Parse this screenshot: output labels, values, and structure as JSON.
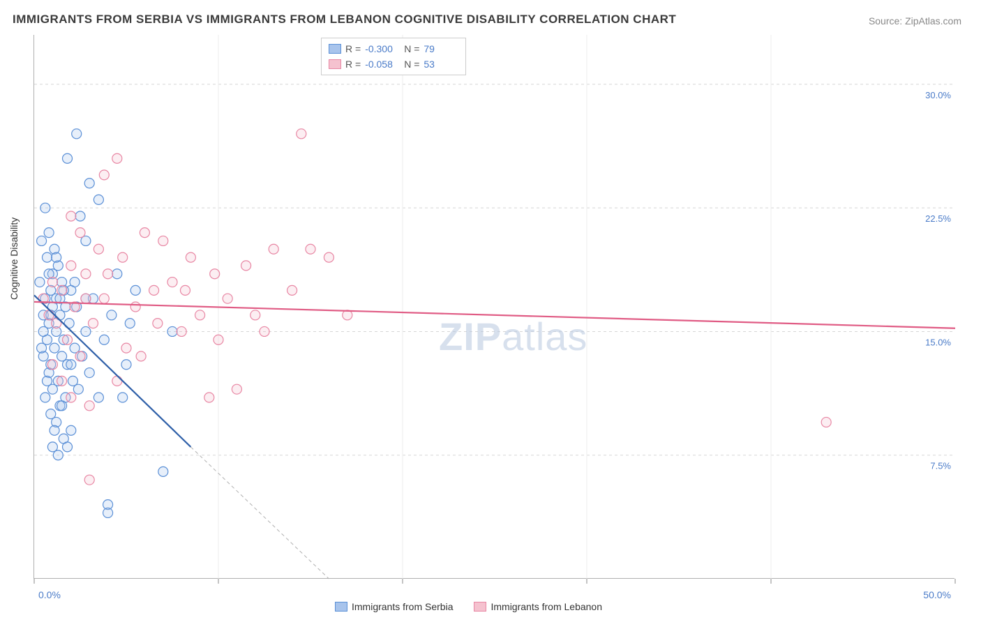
{
  "title": "IMMIGRANTS FROM SERBIA VS IMMIGRANTS FROM LEBANON COGNITIVE DISABILITY CORRELATION CHART",
  "source": "Source: ZipAtlas.com",
  "watermark_bold": "ZIP",
  "watermark_rest": "atlas",
  "y_axis_title": "Cognitive Disability",
  "chart": {
    "type": "scatter",
    "background_color": "#ffffff",
    "grid_color": "#d5d5d5",
    "axis_color": "#b0b0b0",
    "xlim": [
      0,
      50
    ],
    "ylim": [
      0,
      33
    ],
    "x_ticks": [
      0,
      10,
      20,
      30,
      40,
      50
    ],
    "x_tick_labels": [
      "0.0%",
      "",
      "",
      "",
      "",
      "50.0%"
    ],
    "y_ticks": [
      7.5,
      15.0,
      22.5,
      30.0
    ],
    "y_tick_labels": [
      "7.5%",
      "15.0%",
      "22.5%",
      "30.0%"
    ],
    "label_color": "#4a7bc8",
    "label_fontsize": 13,
    "marker_radius": 7,
    "marker_stroke_width": 1.2,
    "marker_fill_opacity": 0.28
  },
  "series": [
    {
      "name": "Immigrants from Serbia",
      "color_fill": "#a8c4ec",
      "color_stroke": "#5a8fd6",
      "R": "-0.300",
      "N": "79",
      "trend": {
        "x1": 0,
        "y1": 17.2,
        "x2": 8.5,
        "y2": 8.0,
        "color": "#2e5fa8",
        "width": 2.2
      },
      "trend_ext": {
        "x1": 8.5,
        "y1": 8.0,
        "x2": 16.0,
        "y2": 0.0,
        "color": "#b0b0b0",
        "dash": "5,4",
        "width": 1
      },
      "points": [
        [
          0.3,
          18.0
        ],
        [
          0.4,
          20.5
        ],
        [
          0.5,
          16.0
        ],
        [
          0.6,
          17.0
        ],
        [
          0.6,
          22.5
        ],
        [
          0.7,
          14.5
        ],
        [
          0.7,
          19.5
        ],
        [
          0.8,
          12.5
        ],
        [
          0.8,
          15.5
        ],
        [
          0.8,
          21.0
        ],
        [
          0.9,
          13.0
        ],
        [
          0.9,
          17.5
        ],
        [
          1.0,
          11.5
        ],
        [
          1.0,
          16.5
        ],
        [
          1.0,
          18.5
        ],
        [
          1.1,
          14.0
        ],
        [
          1.1,
          20.0
        ],
        [
          1.2,
          9.5
        ],
        [
          1.2,
          15.0
        ],
        [
          1.2,
          17.0
        ],
        [
          1.3,
          12.0
        ],
        [
          1.3,
          19.0
        ],
        [
          1.4,
          10.5
        ],
        [
          1.4,
          16.0
        ],
        [
          1.5,
          13.5
        ],
        [
          1.5,
          18.0
        ],
        [
          1.6,
          8.5
        ],
        [
          1.6,
          14.5
        ],
        [
          1.7,
          11.0
        ],
        [
          1.7,
          16.5
        ],
        [
          1.8,
          25.5
        ],
        [
          1.8,
          13.0
        ],
        [
          1.9,
          15.5
        ],
        [
          2.0,
          9.0
        ],
        [
          2.0,
          17.5
        ],
        [
          2.1,
          12.0
        ],
        [
          2.2,
          14.0
        ],
        [
          2.3,
          27.0
        ],
        [
          2.3,
          16.5
        ],
        [
          2.4,
          11.5
        ],
        [
          2.5,
          22.0
        ],
        [
          2.6,
          13.5
        ],
        [
          2.8,
          20.5
        ],
        [
          2.8,
          15.0
        ],
        [
          3.0,
          24.0
        ],
        [
          3.0,
          12.5
        ],
        [
          3.2,
          17.0
        ],
        [
          3.5,
          11.0
        ],
        [
          3.5,
          23.0
        ],
        [
          3.8,
          14.5
        ],
        [
          4.0,
          4.5
        ],
        [
          4.0,
          4.0
        ],
        [
          4.2,
          16.0
        ],
        [
          4.5,
          18.5
        ],
        [
          4.8,
          11.0
        ],
        [
          5.0,
          13.0
        ],
        [
          5.2,
          15.5
        ],
        [
          5.5,
          17.5
        ],
        [
          7.0,
          6.5
        ],
        [
          7.5,
          15.0
        ],
        [
          0.5,
          13.5
        ],
        [
          0.6,
          11.0
        ],
        [
          0.7,
          12.0
        ],
        [
          0.9,
          10.0
        ],
        [
          1.0,
          8.0
        ],
        [
          1.1,
          9.0
        ],
        [
          1.3,
          7.5
        ],
        [
          1.5,
          10.5
        ],
        [
          1.8,
          8.0
        ],
        [
          2.0,
          13.0
        ],
        [
          0.4,
          14.0
        ],
        [
          0.8,
          18.5
        ],
        [
          1.2,
          19.5
        ],
        [
          1.6,
          17.5
        ],
        [
          2.2,
          18.0
        ],
        [
          2.8,
          17.0
        ],
        [
          0.5,
          15.0
        ],
        [
          0.9,
          16.0
        ],
        [
          1.4,
          17.0
        ]
      ]
    },
    {
      "name": "Immigrants from Lebanon",
      "color_fill": "#f5c2cf",
      "color_stroke": "#e886a3",
      "R": "-0.058",
      "N": "53",
      "trend": {
        "x1": 0,
        "y1": 16.8,
        "x2": 50,
        "y2": 15.2,
        "color": "#e05b84",
        "width": 2.2
      },
      "points": [
        [
          0.5,
          17.0
        ],
        [
          0.8,
          16.0
        ],
        [
          1.0,
          18.0
        ],
        [
          1.2,
          15.5
        ],
        [
          1.5,
          17.5
        ],
        [
          1.8,
          14.5
        ],
        [
          2.0,
          19.0
        ],
        [
          2.2,
          16.5
        ],
        [
          2.5,
          13.5
        ],
        [
          2.5,
          21.0
        ],
        [
          2.8,
          17.0
        ],
        [
          3.0,
          10.5
        ],
        [
          3.2,
          15.5
        ],
        [
          3.5,
          20.0
        ],
        [
          3.8,
          24.5
        ],
        [
          4.0,
          18.5
        ],
        [
          4.5,
          25.5
        ],
        [
          5.0,
          14.0
        ],
        [
          5.5,
          16.5
        ],
        [
          6.0,
          21.0
        ],
        [
          6.5,
          17.5
        ],
        [
          7.0,
          20.5
        ],
        [
          7.5,
          18.0
        ],
        [
          8.0,
          15.0
        ],
        [
          8.5,
          19.5
        ],
        [
          9.0,
          16.0
        ],
        [
          9.5,
          11.0
        ],
        [
          10.0,
          14.5
        ],
        [
          10.5,
          17.0
        ],
        [
          11.0,
          11.5
        ],
        [
          11.5,
          19.0
        ],
        [
          12.0,
          16.0
        ],
        [
          13.0,
          20.0
        ],
        [
          14.0,
          17.5
        ],
        [
          14.5,
          27.0
        ],
        [
          15.0,
          20.0
        ],
        [
          16.0,
          19.5
        ],
        [
          17.0,
          16.0
        ],
        [
          3.0,
          6.0
        ],
        [
          4.5,
          12.0
        ],
        [
          5.8,
          13.5
        ],
        [
          1.0,
          13.0
        ],
        [
          1.5,
          12.0
        ],
        [
          2.0,
          11.0
        ],
        [
          2.0,
          22.0
        ],
        [
          2.8,
          18.5
        ],
        [
          3.8,
          17.0
        ],
        [
          4.8,
          19.5
        ],
        [
          6.7,
          15.5
        ],
        [
          8.2,
          17.5
        ],
        [
          9.8,
          18.5
        ],
        [
          12.5,
          15.0
        ],
        [
          43.0,
          9.5
        ]
      ]
    }
  ],
  "legend_bottom": {
    "item1": "Immigrants from Serbia",
    "item2": "Immigrants from Lebanon"
  },
  "legend_top_labels": {
    "R": "R =",
    "N": "N ="
  }
}
